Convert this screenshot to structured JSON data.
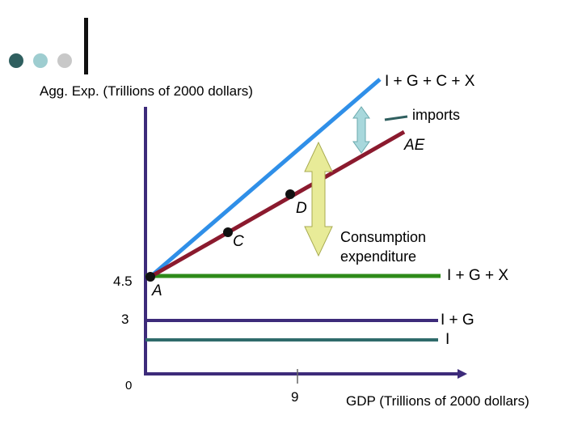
{
  "deco": {
    "dot_colors": [
      "#2f5f5f",
      "#9ecdd0",
      "#c8c8c8"
    ],
    "bar_color": "#111111"
  },
  "axes": {
    "y_label": "Agg. Exp. (Trillions of 2000 dollars)",
    "x_label": "GDP (Trillions of 2000 dollars)",
    "origin_tick": "0",
    "y_ticks": [
      "4.5",
      "3"
    ],
    "x_ticks": [
      "9"
    ],
    "color": "#3d2b7a"
  },
  "lines": {
    "igcx": {
      "label": "I + G + C + X",
      "color": "#2f8fe8"
    },
    "ae": {
      "label": "AE",
      "color": "#8b1a2e"
    },
    "igx": {
      "label": "I + G + X",
      "color": "#2e8b1a"
    },
    "ig": {
      "label": "I + G",
      "color": "#3d2b7a"
    },
    "i": {
      "label": "I",
      "color": "#2f6b6b"
    }
  },
  "annotations": {
    "imports": "imports",
    "consumption_line1": "Consumption",
    "consumption_line2": "expenditure",
    "imports_arrow_color": "#a8d8dc",
    "consumption_arrow_color": "#e8eb98",
    "pointer_color": "#2f5f5f"
  },
  "points": {
    "a": "A",
    "c": "C",
    "d": "D"
  }
}
